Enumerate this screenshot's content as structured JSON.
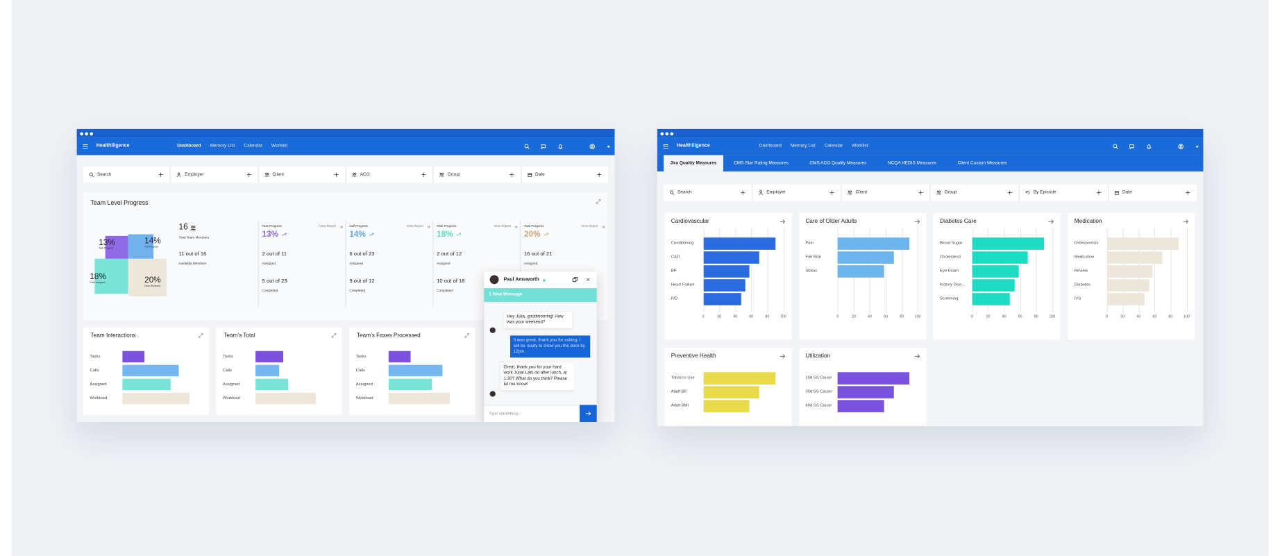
{
  "left_window": {
    "brand": "Healthiligence",
    "nav": [
      "Dashboard",
      "Memory List",
      "Calendar",
      "Worklist"
    ],
    "active_nav": 0,
    "filters": [
      "Search",
      "Employer",
      "Client",
      "ACO",
      "Group",
      "Date"
    ],
    "progress": {
      "title": "Team Level Progress",
      "treemap": [
        {
          "label": "13%",
          "caption": "Task Progress",
          "color": "#8f6ae6"
        },
        {
          "label": "14%",
          "caption": "Call Progress",
          "color": "#6fb2ec"
        },
        {
          "label": "18%",
          "caption": "Case Assigned",
          "color": "#78e3d6"
        },
        {
          "label": "20%",
          "caption": "Case Workload",
          "color": "#ece7da"
        }
      ],
      "members": {
        "count": "16",
        "count_label": "Total Team Members",
        "available": "11 out of 16",
        "available_label": "Available Members"
      },
      "columns": [
        {
          "title": "Task Progress",
          "link": "View Report",
          "percent": "13%",
          "color": "#8f6ae6",
          "assigned": "2 out of 11",
          "assigned_label": "Assigned",
          "completed": "5 out of 23",
          "completed_label": "Completed"
        },
        {
          "title": "Call Progress",
          "link": "View Report",
          "percent": "14%",
          "color": "#5ea6e6",
          "assigned": "6 out of 23",
          "assigned_label": "Assigned",
          "completed": "9 out of 12",
          "completed_label": "Completed"
        },
        {
          "title": "Task Progress",
          "link": "View Report",
          "percent": "18%",
          "color": "#5ed8c8",
          "assigned": "2 out of 12",
          "assigned_label": "Assigned",
          "completed": "10 out of 18",
          "completed_label": "Completed"
        },
        {
          "title": "Task Progress",
          "link": "View Report",
          "percent": "20%",
          "color": "#c9ab73",
          "assigned": "16 out of 21",
          "assigned_label": "Assigned"
        }
      ]
    },
    "cards": [
      {
        "title": "Team Interactions",
        "chart": {
          "type": "bar",
          "categories": [
            "Tasks",
            "Calls",
            "Assigned",
            "Workload"
          ],
          "values": [
            27,
            69,
            59,
            82
          ],
          "colors": [
            "#7b52e0",
            "#74b6ee",
            "#78e3d6",
            "#ece7da"
          ],
          "xlim": [
            0,
            100
          ]
        }
      },
      {
        "title": "Team’s Total",
        "chart": {
          "type": "bar",
          "categories": [
            "Tasks",
            "Calls",
            "Assigned",
            "Workload"
          ],
          "values": [
            34,
            29,
            40,
            74
          ],
          "colors": [
            "#7b52e0",
            "#74b6ee",
            "#78e3d6",
            "#ece7da"
          ],
          "xlim": [
            0,
            100
          ]
        }
      },
      {
        "title": "Team’s Faxes Processed",
        "chart": {
          "type": "bar",
          "categories": [
            "Tasks",
            "Calls",
            "Assigned",
            "Workload"
          ],
          "values": [
            27,
            66,
            53,
            75
          ],
          "colors": [
            "#7b52e0",
            "#74b6ee",
            "#78e3d6",
            "#ece7da"
          ],
          "xlim": [
            0,
            100
          ]
        }
      }
    ],
    "chat": {
      "name": "Paul Amsworth",
      "banner": "1 New Message",
      "messages": [
        {
          "from": "them",
          "text": "Hey Julia, goodmorning! How was your weekend?"
        },
        {
          "from": "me",
          "text": "It was great, thank you for asking. I will be ready to show you the dock by 12pm."
        },
        {
          "from": "them",
          "text": "Great, thank you for your hard work Julia! Lets do after lunch, at 1:30? What do you think? Please let me know!"
        }
      ],
      "placeholder": "Type something..."
    }
  },
  "right_window": {
    "brand": "Healthiligence",
    "nav": [
      "Dashboard",
      "Memory List",
      "Calendar",
      "Worklist"
    ],
    "tabs": [
      "Jira Quality Measures",
      "CMS Star Rating Measures",
      "CMS ACO Quality Measures",
      "NCQA HEDIS Measures",
      "Client Custom Measures"
    ],
    "active_tab": 0,
    "filters": [
      "Search",
      "Employer",
      "Client",
      "Group",
      "By Episode",
      "Date"
    ],
    "cards": [
      {
        "title": "Cardiovascular",
        "chart": {
          "type": "bar",
          "categories": [
            "Conditioning",
            "CAD",
            "BP",
            "Heart Failure",
            "IVD"
          ],
          "values": [
            90,
            70,
            58,
            53,
            47
          ],
          "color": "#2b6be0",
          "xlim": [
            0,
            100
          ],
          "xticks": [
            0,
            20,
            40,
            60,
            80,
            100
          ]
        }
      },
      {
        "title": "Care of Older Adults",
        "chart": {
          "type": "bar",
          "categories": [
            "Pain",
            "Fall Risk",
            "Status"
          ],
          "values": [
            90,
            70,
            58
          ],
          "color": "#6cb4ee",
          "xlim": [
            0,
            100
          ],
          "xticks": [
            0,
            20,
            40,
            60,
            80,
            100
          ]
        }
      },
      {
        "title": "Diabetes Care",
        "chart": {
          "type": "bar",
          "categories": [
            "Blood Sugar",
            "Cholesterol",
            "Eye Exam",
            "Kidney Dise...",
            "Screening"
          ],
          "values": [
            90,
            70,
            58,
            53,
            47
          ],
          "color": "#1ddcc4",
          "xlim": [
            0,
            100
          ],
          "xticks": [
            0,
            20,
            40,
            60,
            80,
            100
          ]
        }
      },
      {
        "title": "Medication",
        "chart": {
          "type": "bar",
          "categories": [
            "Osteoporosis",
            "Medication",
            "Review",
            "Diabetes",
            "IVS"
          ],
          "values": [
            90,
            70,
            58,
            53,
            47
          ],
          "color": "#ece7da",
          "xlim": [
            0,
            100
          ],
          "xticks": [
            0,
            20,
            40,
            60,
            80,
            100
          ]
        }
      },
      {
        "title": "Preventive Health",
        "chart": {
          "type": "bar",
          "categories": [
            "Tobacco Use",
            "Adult BP",
            "Adult BMI"
          ],
          "values": [
            90,
            70,
            58
          ],
          "color": "#e8da4a",
          "xlim": [
            0,
            100
          ]
        }
      },
      {
        "title": "Utilization",
        "chart": {
          "type": "bar",
          "categories": [
            "10d SS Cause",
            "30d SS Cause",
            "60d SS Cause"
          ],
          "values": [
            90,
            70,
            58
          ],
          "color": "#7b52e0",
          "xlim": [
            0,
            100
          ]
        }
      }
    ]
  }
}
